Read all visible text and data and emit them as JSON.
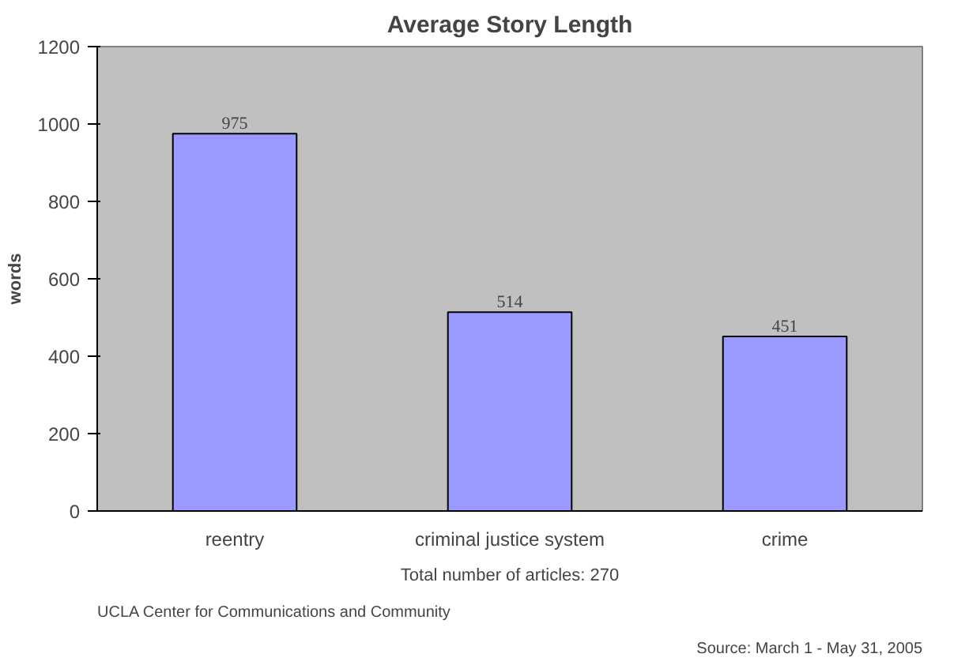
{
  "chart_data": {
    "type": "bar",
    "title": "Average Story Length",
    "ylabel": "words",
    "categories": [
      "reentry",
      "criminal justice system",
      "crime"
    ],
    "values": [
      975,
      514,
      451
    ],
    "color": "#9999ff",
    "data_labels": true,
    "grid": false,
    "ylim": [
      0,
      1200
    ],
    "yticks": [
      0,
      200,
      400,
      600,
      800,
      1000,
      1200
    ],
    "annotations": [
      "Total number of articles: 270",
      "UCLA Center for Communications and Community",
      "Source: March 1 - May 31, 2005"
    ]
  }
}
